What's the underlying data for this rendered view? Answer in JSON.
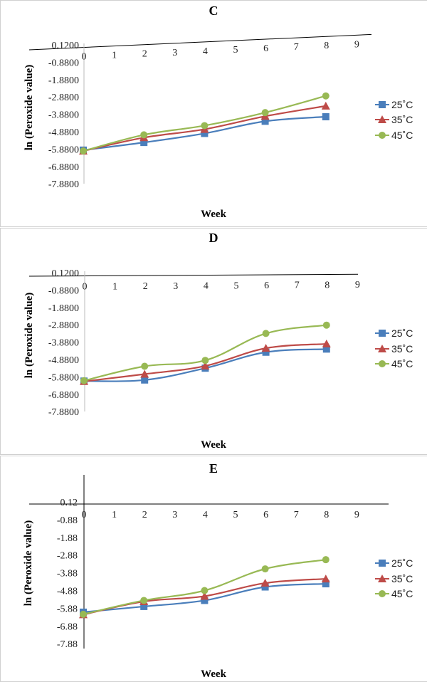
{
  "series_colors": {
    "s25": "#4A7EBB",
    "s35": "#BE4B48",
    "s45": "#98B954"
  },
  "chart_data": [
    {
      "type": "line",
      "title": "C",
      "xlabel": "Week",
      "ylabel": "ln (Peroxide value)",
      "xlim": [
        0,
        9
      ],
      "ylim": [
        -7.88,
        0.12
      ],
      "x_ticks": [
        "0",
        "1",
        "2",
        "3",
        "4",
        "5",
        "6",
        "7",
        "8",
        "9"
      ],
      "y_ticks": [
        "0.1200",
        "-0.8800",
        "-1.8800",
        "-2.8800",
        "-3.8800",
        "-4.8800",
        "-5.8800",
        "-6.8800",
        "-7.8800"
      ],
      "legend_position": "right",
      "x": [
        0,
        2,
        4,
        6,
        8
      ],
      "series": [
        {
          "name": "25˚C",
          "values": [
            -5.94,
            -5.5,
            -4.98,
            -4.28,
            -4.02
          ]
        },
        {
          "name": "35˚C",
          "values": [
            -5.99,
            -5.22,
            -4.74,
            -3.99,
            -3.4
          ]
        },
        {
          "name": "45˚C",
          "values": [
            -5.99,
            -5.06,
            -4.53,
            -3.78,
            -2.82
          ]
        }
      ]
    },
    {
      "type": "line",
      "title": "D",
      "xlabel": "Week",
      "ylabel": "ln (Peroxide value)",
      "xlim": [
        0,
        9
      ],
      "ylim": [
        -7.88,
        0.12
      ],
      "x_ticks": [
        "0",
        "1",
        "2",
        "3",
        "4",
        "5",
        "6",
        "7",
        "8",
        "9"
      ],
      "y_ticks": [
        "0.1200",
        "-0.8800",
        "-1.8800",
        "-2.8800",
        "-3.8800",
        "-4.8800",
        "-5.8800",
        "-6.8800",
        "-7.8800"
      ],
      "legend_position": "right",
      "x": [
        0,
        2,
        4,
        6,
        8
      ],
      "series": [
        {
          "name": "25˚C",
          "values": [
            -6.12,
            -6.06,
            -5.38,
            -4.46,
            -4.28
          ]
        },
        {
          "name": "35˚C",
          "values": [
            -6.14,
            -5.72,
            -5.25,
            -4.23,
            -3.98
          ]
        },
        {
          "name": "45˚C",
          "values": [
            -6.1,
            -5.27,
            -4.93,
            -3.38,
            -2.9
          ]
        }
      ]
    },
    {
      "type": "line",
      "title": "E",
      "xlabel": "Week",
      "ylabel": "ln (Peroxide value)",
      "xlim": [
        0,
        9
      ],
      "ylim": [
        -7.88,
        0.12
      ],
      "x_ticks": [
        "0",
        "1",
        "2",
        "3",
        "4",
        "5",
        "6",
        "7",
        "8",
        "9"
      ],
      "y_ticks": [
        "0.12",
        "-0.88",
        "-1.88",
        "-2.88",
        "-3.88",
        "-4.88",
        "-5.88",
        "-6.88",
        "-7.88"
      ],
      "legend_position": "right",
      "x": [
        0,
        2,
        4,
        6,
        8
      ],
      "series": [
        {
          "name": "25˚C",
          "values": [
            -6.1,
            -5.78,
            -5.44,
            -4.68,
            -4.5
          ]
        },
        {
          "name": "35˚C",
          "values": [
            -6.24,
            -5.5,
            -5.2,
            -4.46,
            -4.22
          ]
        },
        {
          "name": "45˚C",
          "values": [
            -6.22,
            -5.44,
            -4.88,
            -3.66,
            -3.14
          ]
        }
      ]
    }
  ]
}
